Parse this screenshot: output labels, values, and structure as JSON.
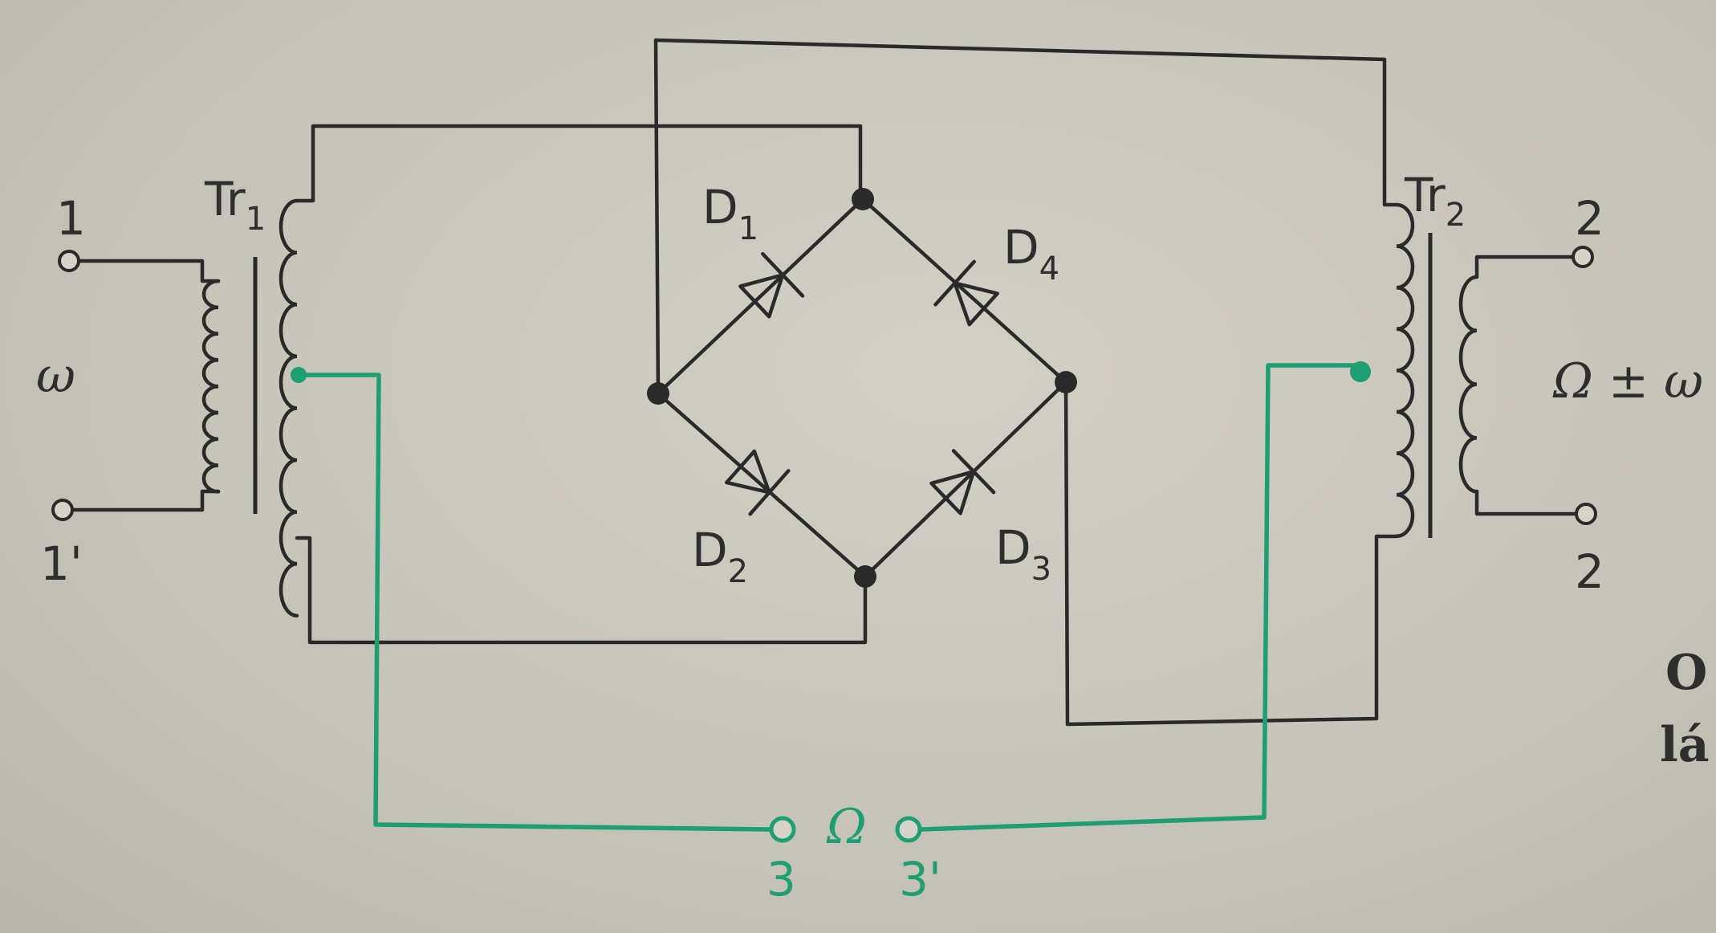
{
  "transformer_1": {
    "label": "Tr",
    "subscript": "1"
  },
  "transformer_2": {
    "label": "Tr",
    "subscript": "2"
  },
  "input": {
    "terminal_top": "1",
    "terminal_bottom": "1'",
    "signal": "ω"
  },
  "output": {
    "terminal_top": "2",
    "terminal_bottom": "2",
    "signal": "Ω ± ω"
  },
  "carrier": {
    "terminal_left": "3",
    "terminal_right": "3'",
    "signal": "Ω"
  },
  "diodes": [
    {
      "label": "D",
      "subscript": "1"
    },
    {
      "label": "D",
      "subscript": "2"
    },
    {
      "label": "D",
      "subscript": "3"
    },
    {
      "label": "D",
      "subscript": "4"
    }
  ],
  "page_fragment": {
    "line_1": "O",
    "line_2": "lá"
  },
  "colors": {
    "wire": "#2a2a2a",
    "carrier_wire": "#1f9e73",
    "paper": "#c9c6bc"
  }
}
